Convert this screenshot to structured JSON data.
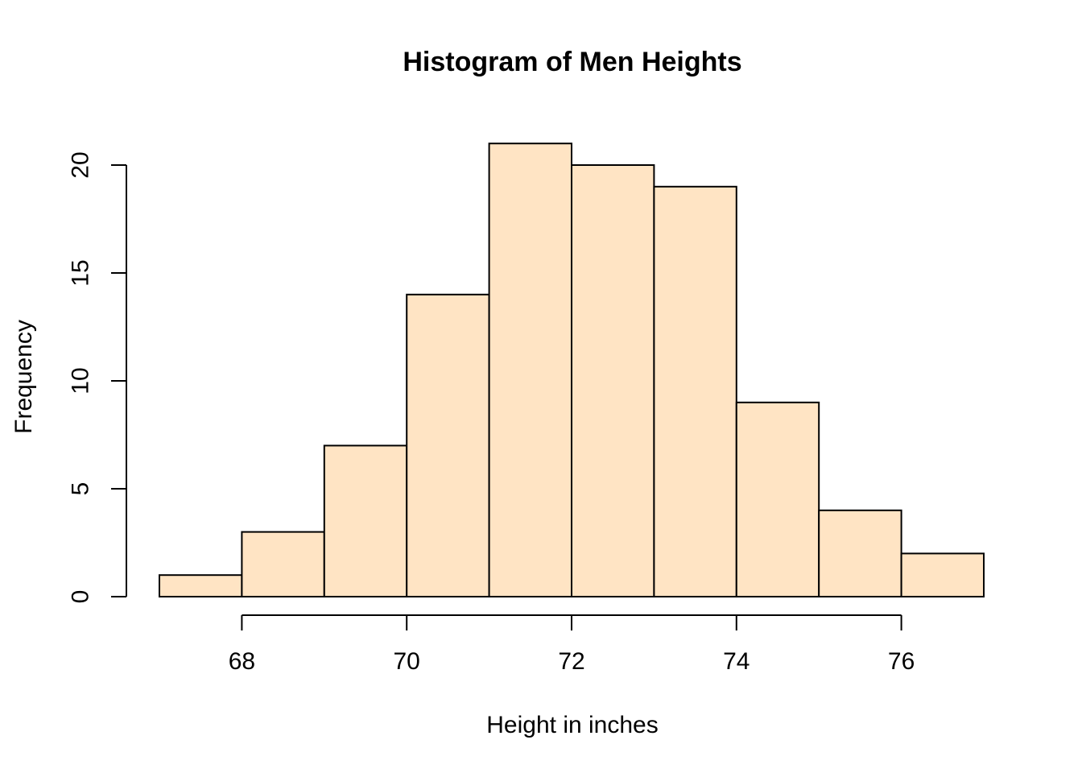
{
  "chart_data": {
    "type": "bar",
    "subtype": "histogram",
    "title": "Histogram of Men Heights",
    "xlabel": "Height in inches",
    "ylabel": "Frequency",
    "bin_edges": [
      67,
      68,
      69,
      70,
      71,
      72,
      73,
      74,
      75,
      76,
      77
    ],
    "counts": [
      1,
      3,
      7,
      14,
      21,
      20,
      19,
      9,
      4,
      2
    ],
    "x_ticks": [
      68,
      70,
      72,
      74,
      76
    ],
    "y_ticks": [
      0,
      5,
      10,
      15,
      20
    ],
    "xlim": [
      67,
      77
    ],
    "ylim": [
      0,
      21
    ],
    "grid": false,
    "legend": null,
    "colors": {
      "bar_fill": "#FFE4C4",
      "bar_border": "#000000",
      "axis": "#000000",
      "background": "#FFFFFF"
    }
  }
}
